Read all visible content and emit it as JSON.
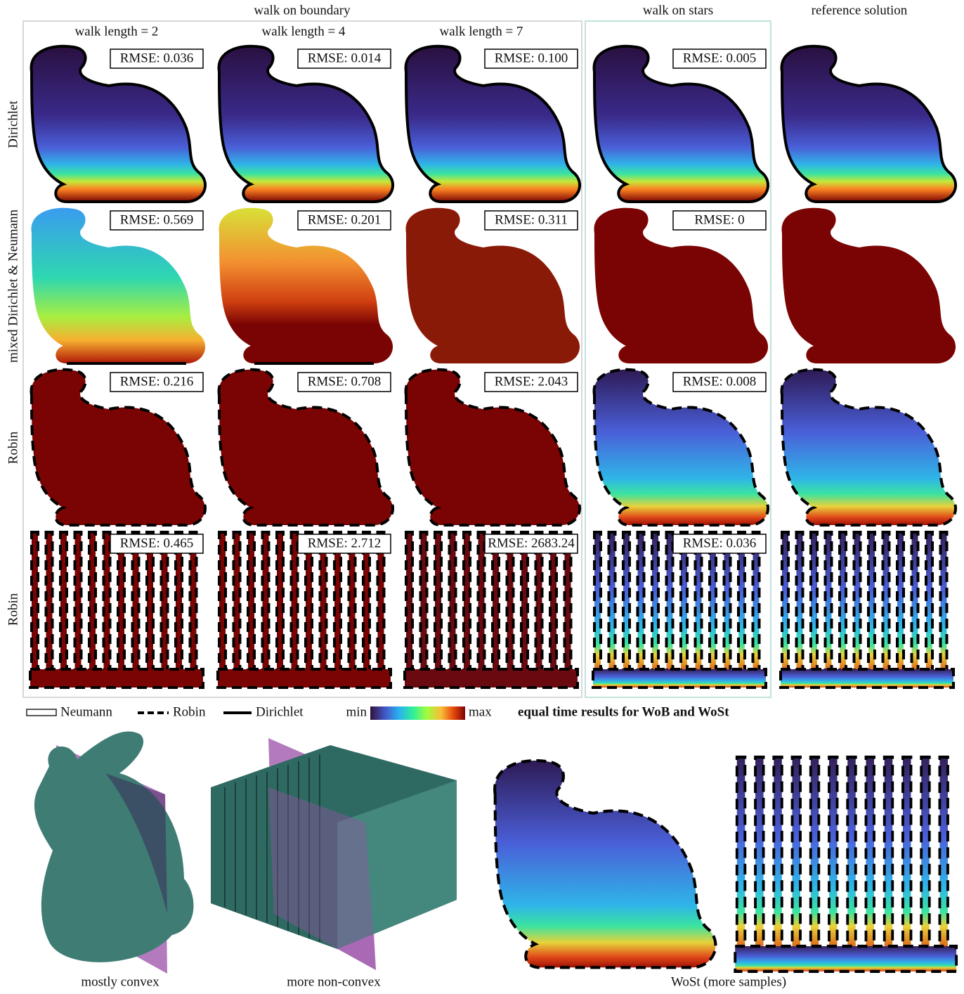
{
  "header": {
    "groups": [
      "walk on boundary",
      "walk on stars",
      "reference solution"
    ],
    "walk_lengths": [
      "walk length = 2",
      "walk length = 4",
      "walk length = 7"
    ]
  },
  "rows": [
    {
      "label": "Dirichlet",
      "rmse": [
        "RMSE: 0.036",
        "RMSE: 0.014",
        "RMSE: 0.100",
        "RMSE: 0.005"
      ]
    },
    {
      "label": "mixed Dirichlet & Neumann",
      "rmse": [
        "RMSE: 0.569",
        "RMSE: 0.201",
        "RMSE: 0.311",
        "RMSE: 0"
      ]
    },
    {
      "label": "Robin",
      "rmse": [
        "RMSE: 0.216",
        "RMSE: 0.708",
        "RMSE: 2.043",
        "RMSE: 0.008"
      ]
    },
    {
      "label": "Robin",
      "rmse": [
        "RMSE: 0.465",
        "RMSE: 2.712",
        "RMSE: 2683.24",
        "RMSE: 0.036"
      ]
    }
  ],
  "legend": {
    "neumann": "Neumann",
    "robin": "Robin",
    "dirichlet": "Dirichlet",
    "min": "min",
    "max": "max",
    "caption": "equal time results for WoB and WoSt"
  },
  "bottom": {
    "captions": [
      "mostly convex",
      "more non-convex",
      "WoSt (more samples)"
    ]
  }
}
